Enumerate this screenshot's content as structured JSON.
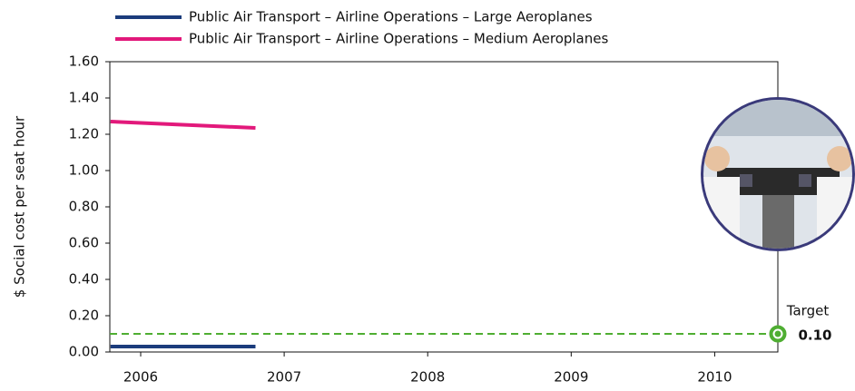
{
  "chart_data": {
    "type": "line",
    "x": [
      2005.79,
      2006.8
    ],
    "xlim": [
      2005.785,
      2010.44
    ],
    "xticks": [
      2006,
      2007,
      2008,
      2009,
      2010
    ],
    "ylim": [
      0,
      1.6
    ],
    "yticks": [
      {
        "value": 0,
        "label": "0.00"
      },
      {
        "value": 0.2,
        "label": "0.20"
      },
      {
        "value": 0.4,
        "label": "0.40"
      },
      {
        "value": 0.6,
        "label": "0.60"
      },
      {
        "value": 0.8,
        "label": "0.80"
      },
      {
        "value": 1.0,
        "label": "1.00"
      },
      {
        "value": 1.2,
        "label": "1.20"
      },
      {
        "value": 1.4,
        "label": "1.40"
      },
      {
        "value": 1.6,
        "label": "1.60"
      }
    ],
    "y_label": "$ Social cost per seat hour",
    "series": [
      {
        "name": "Public Air Transport – Airline Operations – Large Aeroplanes",
        "color": "#1b3c7c",
        "values": [
          0.03,
          0.03
        ]
      },
      {
        "name": "Public Air Transport – Airline Operations – Medium Aeroplanes",
        "color": "#e2197b",
        "values": [
          1.27,
          1.235
        ]
      }
    ],
    "target": {
      "label": "Target",
      "value": 0.1,
      "value_label": "0.10",
      "color": "#4fae32"
    }
  }
}
